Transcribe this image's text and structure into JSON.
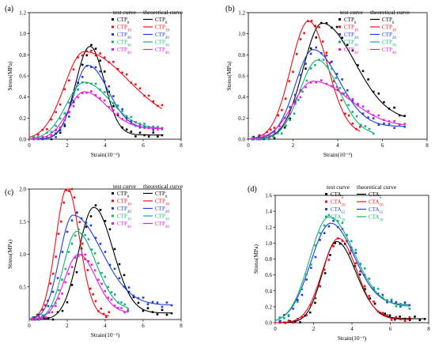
{
  "figure": {
    "panels": [
      "(a)",
      "(b)",
      "(c)",
      "(d)"
    ],
    "legend_headers": {
      "test": "test curve",
      "theory": "theoretical curve"
    },
    "ylabel": "Stress(MPa)",
    "xlabel": "Strain(10⁻²)",
    "colors": [
      "#000000",
      "#e8101a",
      "#1f3fd8",
      "#14b07a",
      "#e020e0"
    ]
  },
  "chart_data": [
    {
      "type": "line",
      "panel": "(a)",
      "xlabel": "Strain(10⁻²)",
      "ylabel": "Stress(MPa)",
      "xlim": [
        0,
        8
      ],
      "ylim": [
        0,
        1.2
      ],
      "xticks": [
        "0",
        "2",
        "4",
        "6",
        "8"
      ],
      "yticks": [
        "0.0",
        "0.2",
        "0.4",
        "0.6",
        "0.8",
        "1.0",
        "1.2"
      ],
      "legend_test": [
        "CTP0",
        "CTP10",
        "CTP20",
        "CTP30",
        "CTP40"
      ],
      "legend_theory": [
        "CTP0",
        "CTP10",
        "CTP20",
        "CTP30",
        "CTP40"
      ],
      "series": [
        {
          "label": "CTP0",
          "color": "#000000",
          "peak_x": 3.2,
          "peak_y": 0.88,
          "wl": 0.75,
          "wr": 0.75,
          "base": 0.04,
          "x_end": 7.0
        },
        {
          "label": "CTP10",
          "color": "#e8101a",
          "peak_x": 2.9,
          "peak_y": 0.83,
          "wl": 1.05,
          "wr": 2.3,
          "base": 0.15,
          "x_end": 7.0
        },
        {
          "label": "CTP20",
          "color": "#1f3fd8",
          "peak_x": 3.1,
          "peak_y": 0.7,
          "wl": 0.75,
          "wr": 1.05,
          "base": 0.1,
          "x_end": 7.0
        },
        {
          "label": "CTP30",
          "color": "#14b07a",
          "peak_x": 2.9,
          "peak_y": 0.54,
          "wl": 0.95,
          "wr": 1.35,
          "base": 0.1,
          "x_end": 7.0
        },
        {
          "label": "CTP40",
          "color": "#e020e0",
          "peak_x": 2.9,
          "peak_y": 0.45,
          "wl": 0.85,
          "wr": 1.2,
          "base": 0.1,
          "x_end": 7.0
        }
      ]
    },
    {
      "type": "line",
      "panel": "(b)",
      "xlabel": "Strain(10⁻²)",
      "ylabel": "Stress(MPa)",
      "xlim": [
        0,
        8
      ],
      "ylim": [
        0,
        1.2
      ],
      "xticks": [
        "0",
        "2",
        "4",
        "6",
        "8"
      ],
      "yticks": [
        "0.0",
        "0.2",
        "0.4",
        "0.6",
        "0.8",
        "1.0",
        "1.2"
      ],
      "legend_test": [
        "CTP0",
        "CTP10",
        "CTP20",
        "CTP30",
        "CTP40"
      ],
      "legend_theory": [
        "CTP0",
        "CTP10",
        "CTP20",
        "CTP30",
        "CTP40"
      ],
      "series": [
        {
          "label": "CTP0",
          "color": "#000000",
          "peak_x": 3.3,
          "peak_y": 1.1,
          "wl": 0.85,
          "wr": 1.45,
          "base": 0.18,
          "x_end": 7.0
        },
        {
          "label": "CTP10",
          "color": "#e8101a",
          "peak_x": 2.7,
          "peak_y": 1.12,
          "wl": 0.8,
          "wr": 0.85,
          "base": 0.05,
          "x_end": 5.0
        },
        {
          "label": "CTP20",
          "color": "#1f3fd8",
          "peak_x": 2.9,
          "peak_y": 0.85,
          "wl": 0.8,
          "wr": 1.15,
          "base": 0.12,
          "x_end": 7.0
        },
        {
          "label": "CTP30",
          "color": "#14b07a",
          "peak_x": 3.1,
          "peak_y": 0.75,
          "wl": 0.8,
          "wr": 0.95,
          "base": 0.04,
          "x_end": 5.6
        },
        {
          "label": "CTP40",
          "color": "#e020e0",
          "peak_x": 2.9,
          "peak_y": 0.55,
          "wl": 0.9,
          "wr": 1.6,
          "base": 0.12,
          "x_end": 7.0
        }
      ]
    },
    {
      "type": "line",
      "panel": "(c)",
      "xlabel": "Strain(10⁻²)",
      "ylabel": "Stress(MPa)",
      "xlim": [
        0,
        8
      ],
      "ylim": [
        0,
        2.0
      ],
      "xticks": [
        "0",
        "2",
        "4",
        "6",
        "8"
      ],
      "yticks": [
        "0.5",
        "1.0",
        "1.5",
        "2.0"
      ],
      "legend_test": [
        "CTP0",
        "CTP10",
        "CTP20",
        "CTP30",
        "CTP40"
      ],
      "legend_theory": [
        "CTP0",
        "CTP10",
        "CTP20",
        "CTP30",
        "CTP40"
      ],
      "series": [
        {
          "label": "CTP0",
          "color": "#000000",
          "peak_x": 3.4,
          "peak_y": 1.72,
          "wl": 0.8,
          "wr": 1.0,
          "base": 0.1,
          "x_end": 7.5
        },
        {
          "label": "CTP10",
          "color": "#e8101a",
          "peak_x": 2.0,
          "peak_y": 2.02,
          "wl": 0.6,
          "wr": 0.65,
          "base": 0.05,
          "x_end": 4.2
        },
        {
          "label": "CTP20",
          "color": "#1f3fd8",
          "peak_x": 2.3,
          "peak_y": 1.6,
          "wl": 0.7,
          "wr": 1.5,
          "base": 0.22,
          "x_end": 7.5
        },
        {
          "label": "CTP30",
          "color": "#14b07a",
          "peak_x": 2.5,
          "peak_y": 1.35,
          "wl": 0.7,
          "wr": 1.0,
          "base": 0.15,
          "x_end": 5.2
        },
        {
          "label": "CTP40",
          "color": "#e020e0",
          "peak_x": 2.6,
          "peak_y": 1.0,
          "wl": 0.75,
          "wr": 0.9,
          "base": 0.1,
          "x_end": 5.2
        }
      ]
    },
    {
      "type": "line",
      "panel": "(d)",
      "xlabel": "Strain(10⁻²)",
      "ylabel": "Stress(MPa)",
      "xlim": [
        0,
        8
      ],
      "ylim": [
        0,
        1.6
      ],
      "xticks": [
        "0",
        "2",
        "4",
        "6",
        "8"
      ],
      "yticks": [
        "0.0",
        "0.2",
        "0.4",
        "0.6",
        "0.8",
        "1.0",
        "1.2",
        "1.4",
        "1.6"
      ],
      "legend_test": [
        "CTA5",
        "CTA10",
        "CTA15",
        "CTA20"
      ],
      "legend_theory": [
        "CTA5",
        "CTA10",
        "CTA15",
        "CTA20"
      ],
      "series": [
        {
          "label": "CTA5",
          "color": "#000000",
          "peak_x": 3.2,
          "peak_y": 1.02,
          "wl": 0.75,
          "wr": 1.0,
          "base": 0.05,
          "x_end": 7.8
        },
        {
          "label": "CTA10",
          "color": "#e8101a",
          "peak_x": 3.3,
          "peak_y": 1.06,
          "wl": 0.85,
          "wr": 0.95,
          "base": 0.04,
          "x_end": 7.0
        },
        {
          "label": "CTA15",
          "color": "#1f3fd8",
          "peak_x": 2.9,
          "peak_y": 1.25,
          "wl": 1.05,
          "wr": 1.2,
          "base": 0.22,
          "x_end": 7.0
        },
        {
          "label": "CTA20",
          "color": "#14b07a",
          "peak_x": 2.8,
          "peak_y": 1.33,
          "wl": 1.0,
          "wr": 1.3,
          "base": 0.2,
          "x_end": 7.0
        }
      ]
    }
  ]
}
